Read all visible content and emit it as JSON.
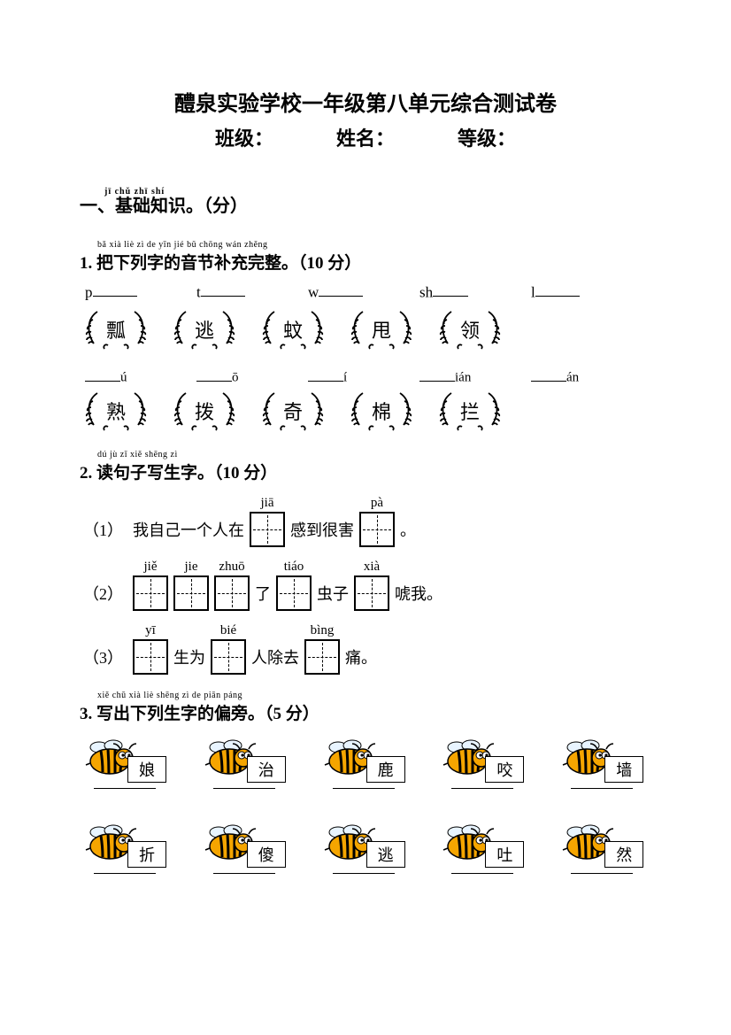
{
  "title": "醴泉实验学校一年级第八单元综合测试卷",
  "subtitle": {
    "class": "班级：",
    "name_label": "姓名：",
    "grade": "等级："
  },
  "section1": {
    "ruby": "jī chǔ zhī shí",
    "text": "一、基础知识。（分）"
  },
  "q1": {
    "ruby": "bǎ xià liè zì de yīn jié bǔ chōng wán zhěng",
    "heading": "1. 把下列字的音节补充完整。（10 分）",
    "row1_initials": [
      "p",
      "t",
      "w",
      "sh",
      "l"
    ],
    "row1_chars": [
      "瓢",
      "逃",
      "蚊",
      "甩",
      "领"
    ],
    "row2_finals": [
      "ú",
      "ō",
      "í",
      "ián",
      "án"
    ],
    "row2_chars": [
      "熟",
      "拨",
      "奇",
      "棉",
      "拦"
    ]
  },
  "q2": {
    "ruby": "dú jù zǐ xiě shēng zì",
    "heading": "2. 读句子写生字。（10 分）",
    "lines": [
      {
        "idx": "（1）",
        "parts": [
          {
            "t": "我自己一个人在"
          },
          {
            "b": "jiā"
          },
          {
            "t": "感到很害"
          },
          {
            "b": "pà"
          },
          {
            "t": "。"
          }
        ]
      },
      {
        "idx": "（2）",
        "parts": [
          {
            "b": "jiě"
          },
          {
            "b": "jie"
          },
          {
            "b": "zhuō"
          },
          {
            "t": "了"
          },
          {
            "b": "tiáo"
          },
          {
            "t": "虫子"
          },
          {
            "b": "xià"
          },
          {
            "t": "唬我。"
          }
        ]
      },
      {
        "idx": "（3）",
        "parts": [
          {
            "b": "yī"
          },
          {
            "t": "生为"
          },
          {
            "b": "bié"
          },
          {
            "t": "人除去"
          },
          {
            "b": "bìng"
          },
          {
            "t": "痛。"
          }
        ]
      }
    ]
  },
  "q3": {
    "ruby": "xiě chū xià liè shēng zì de piān páng",
    "heading": "3. 写出下列生字的偏旁。（5 分）",
    "row1": [
      "娘",
      "治",
      "鹿",
      "咬",
      "墙"
    ],
    "row2": [
      "折",
      "傻",
      "逃",
      "吐",
      "然"
    ]
  },
  "colors": {
    "stroke": "#000000",
    "bee_body": "#f5a500",
    "bee_stripe": "#000000",
    "bee_wing": "#e8f4ff",
    "bee_eye": "#ffffff"
  }
}
